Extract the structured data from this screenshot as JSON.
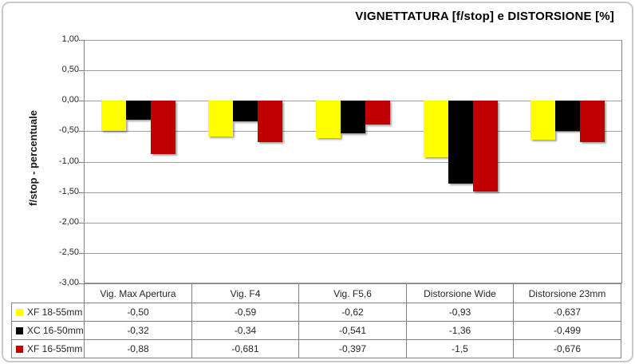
{
  "chart_data": {
    "type": "bar",
    "title": "VIGNETTATURA [f/stop] e DISTORSIONE [%]",
    "ylabel": "f/stop - percentuale",
    "xlabel": "",
    "ylim": [
      -3,
      1
    ],
    "ytick_step": 0.5,
    "ytick_labels": [
      "1,00",
      "0,50",
      "0,00",
      "-0,50",
      "-1,00",
      "-1,50",
      "-2,00",
      "-2,50",
      "-3,00"
    ],
    "grid": true,
    "legend_position": "table-left",
    "categories": [
      "Vig. Max Apertura",
      "Vig. F4",
      "Vig. F5,6",
      "Distorsione Wide",
      "Distorsione 23mm"
    ],
    "series": [
      {
        "name": "XF 18-55mm",
        "color": "#FFFF00",
        "values": [
          -0.5,
          -0.59,
          -0.62,
          -0.93,
          -0.637
        ],
        "labels": [
          "-0,50",
          "-0,59",
          "-0,62",
          "-0,93",
          "-0,637"
        ]
      },
      {
        "name": "XC 16-50mm",
        "color": "#000000",
        "values": [
          -0.32,
          -0.34,
          -0.541,
          -1.36,
          -0.499
        ],
        "labels": [
          "-0,32",
          "-0,34",
          "-0,541",
          "-1,36",
          "-0,499"
        ]
      },
      {
        "name": "XF 16-55mm",
        "color": "#C00000",
        "values": [
          -0.88,
          -0.681,
          -0.397,
          -1.5,
          -0.676
        ],
        "labels": [
          "-0,88",
          "-0,681",
          "-0,397",
          "-1,5",
          "-0,676"
        ]
      }
    ]
  },
  "colors": {
    "gridline": "#A0A0A0",
    "axis_border": "#808080",
    "outer_border": "#C9C9C9",
    "text": "#262626"
  }
}
